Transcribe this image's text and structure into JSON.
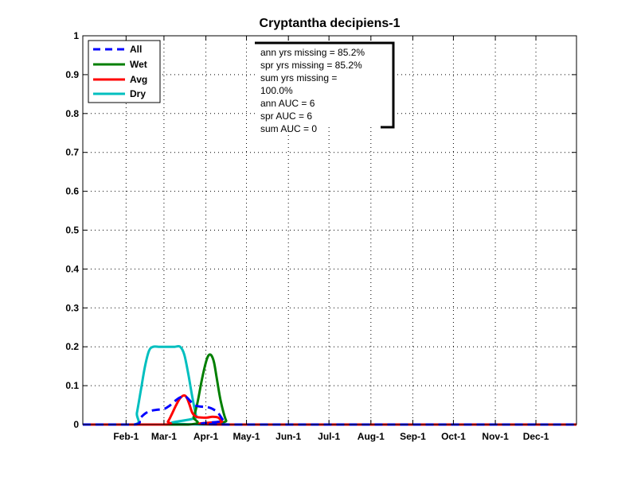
{
  "chart_data": {
    "type": "line",
    "title": "Cryptantha decipiens-1",
    "xlabel": "",
    "ylabel": "",
    "xlim": [
      0,
      365
    ],
    "ylim": [
      0,
      1
    ],
    "grid": true,
    "legend_position": "top-left",
    "y_ticks": [
      "0",
      "0.1",
      "0.2",
      "0.3",
      "0.4",
      "0.5",
      "0.6",
      "0.7",
      "0.8",
      "0.9",
      "1"
    ],
    "x_ticks": [
      {
        "label": "Feb-1",
        "x": 32
      },
      {
        "label": "Mar-1",
        "x": 60
      },
      {
        "label": "Apr-1",
        "x": 91
      },
      {
        "label": "May-1",
        "x": 121
      },
      {
        "label": "Jun-1",
        "x": 152
      },
      {
        "label": "Jul-1",
        "x": 182
      },
      {
        "label": "Aug-1",
        "x": 213
      },
      {
        "label": "Sep-1",
        "x": 244
      },
      {
        "label": "Oct-1",
        "x": 274
      },
      {
        "label": "Nov-1",
        "x": 305
      },
      {
        "label": "Dec-1",
        "x": 335
      }
    ],
    "series": [
      {
        "name": "All",
        "color": "#0000ff",
        "style": "dashed",
        "x": [
          0,
          38,
          42,
          46,
          50,
          55,
          60,
          64,
          68,
          71,
          74,
          76,
          78,
          81,
          84,
          88,
          92,
          96,
          100,
          104,
          108,
          365
        ],
        "y": [
          0,
          0,
          0.015,
          0.028,
          0.035,
          0.038,
          0.04,
          0.048,
          0.06,
          0.068,
          0.072,
          0.072,
          0.066,
          0.055,
          0.048,
          0.046,
          0.045,
          0.04,
          0.03,
          0.01,
          0,
          0
        ]
      },
      {
        "name": "Wet",
        "color": "#007f00",
        "style": "solid",
        "x": [
          0,
          78,
          82,
          85,
          88,
          91,
          93,
          95,
          97,
          99,
          102,
          106,
          110,
          365
        ],
        "y": [
          0,
          0,
          0.02,
          0.06,
          0.115,
          0.16,
          0.178,
          0.178,
          0.16,
          0.12,
          0.06,
          0.01,
          0,
          0
        ]
      },
      {
        "name": "Avg",
        "color": "#ff0000",
        "style": "solid",
        "x": [
          0,
          60,
          63,
          66,
          69,
          72,
          75,
          77,
          79,
          81,
          84,
          88,
          92,
          96,
          100,
          103,
          106,
          365
        ],
        "y": [
          0,
          0,
          0.008,
          0.028,
          0.05,
          0.068,
          0.075,
          0.068,
          0.05,
          0.03,
          0.02,
          0.018,
          0.018,
          0.02,
          0.018,
          0.008,
          0,
          0
        ]
      },
      {
        "name": "Dry",
        "color": "#00bfbf",
        "style": "solid",
        "x": [
          0,
          38,
          40,
          43,
          46,
          49,
          52,
          56,
          60,
          64,
          68,
          72,
          75,
          78,
          81,
          84,
          87,
          365
        ],
        "y": [
          0,
          0,
          0.03,
          0.09,
          0.15,
          0.19,
          0.2,
          0.2,
          0.2,
          0.2,
          0.2,
          0.2,
          0.18,
          0.13,
          0.07,
          0.02,
          0,
          0
        ]
      }
    ],
    "annotation": [
      "ann yrs missing = 85.2%",
      "spr yrs missing = 85.2%",
      "sum yrs missing =",
      "100.0%",
      "ann AUC = 6",
      "spr AUC = 6",
      "sum AUC = 0"
    ]
  }
}
